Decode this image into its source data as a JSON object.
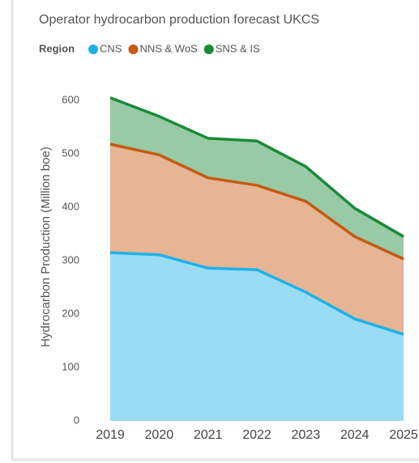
{
  "chart_data": {
    "type": "stacked-area",
    "title": "Operator hydrocarbon production forecast UKCS",
    "legend_title": "Region",
    "y_label": "Hydrocarbon Production (Million boe)",
    "x": [
      2019,
      2020,
      2021,
      2022,
      2023,
      2024,
      2025
    ],
    "series": [
      {
        "name": "CNS",
        "color": "#1fb1e8",
        "values": [
          315,
          311,
          286,
          283,
          241,
          191,
          162
        ]
      },
      {
        "name": "NNS & WoS",
        "color": "#c55a11",
        "values": [
          203,
          187,
          169,
          158,
          170,
          154,
          141
        ]
      },
      {
        "name": "SNS & IS",
        "color": "#1a8a38",
        "values": [
          87,
          72,
          74,
          83,
          65,
          53,
          42
        ]
      }
    ],
    "xlim": [
      2019,
      2025
    ],
    "ylim": [
      0,
      600
    ],
    "yticks": [
      0,
      100,
      200,
      300,
      400,
      500,
      600
    ],
    "grid": false
  }
}
